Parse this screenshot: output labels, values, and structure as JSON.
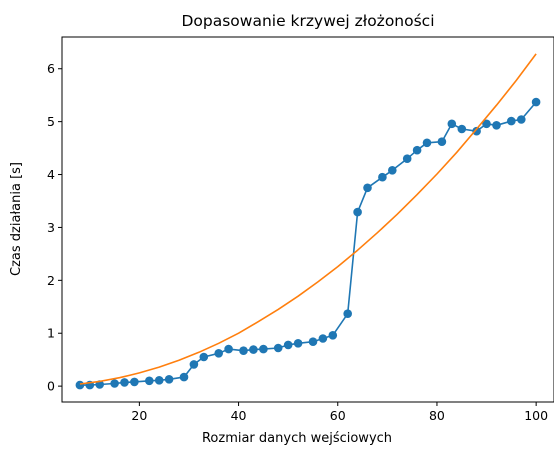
{
  "chart_data": {
    "type": "line",
    "title": "Dopasowanie krzywej złożoności",
    "xlabel": "Rozmiar danych wejściowych",
    "ylabel": "Czas działania [s]",
    "xlim": [
      4.4,
      103.6
    ],
    "ylim": [
      -0.3,
      6.6
    ],
    "xticks": [
      20,
      40,
      60,
      80,
      100
    ],
    "yticks": [
      0,
      1,
      2,
      3,
      4,
      5,
      6
    ],
    "grid": false,
    "series": [
      {
        "kind": "line-with-markers",
        "color": "#1f77b4",
        "x": [
          8,
          10,
          12,
          15,
          17,
          19,
          22,
          24,
          26,
          29,
          31,
          33,
          36,
          38,
          41,
          43,
          45,
          48,
          50,
          52,
          55,
          57,
          59,
          62,
          64,
          66,
          69,
          71,
          74,
          76,
          78,
          81,
          83,
          85,
          88,
          90,
          92,
          95,
          97,
          100
        ],
        "y": [
          0.02,
          0.02,
          0.03,
          0.05,
          0.07,
          0.08,
          0.1,
          0.11,
          0.13,
          0.17,
          0.41,
          0.55,
          0.62,
          0.7,
          0.67,
          0.69,
          0.7,
          0.72,
          0.78,
          0.81,
          0.84,
          0.9,
          0.96,
          1.37,
          3.29,
          3.75,
          3.95,
          4.08,
          4.3,
          4.46,
          4.6,
          4.62,
          4.96,
          4.86,
          4.82,
          4.96,
          4.93,
          5.01,
          5.04,
          5.37
        ]
      },
      {
        "kind": "line",
        "color": "#ff7f0e",
        "x": [
          8,
          12,
          16,
          20,
          24,
          28,
          32,
          36,
          40,
          44,
          48,
          52,
          56,
          60,
          64,
          68,
          72,
          76,
          80,
          84,
          88,
          92,
          96,
          100
        ],
        "y": [
          0.04,
          0.09,
          0.16,
          0.25,
          0.36,
          0.49,
          0.64,
          0.81,
          1.0,
          1.22,
          1.45,
          1.7,
          1.97,
          2.26,
          2.57,
          2.9,
          3.25,
          3.62,
          4.01,
          4.42,
          4.86,
          5.31,
          5.78,
          6.28
        ]
      }
    ]
  }
}
